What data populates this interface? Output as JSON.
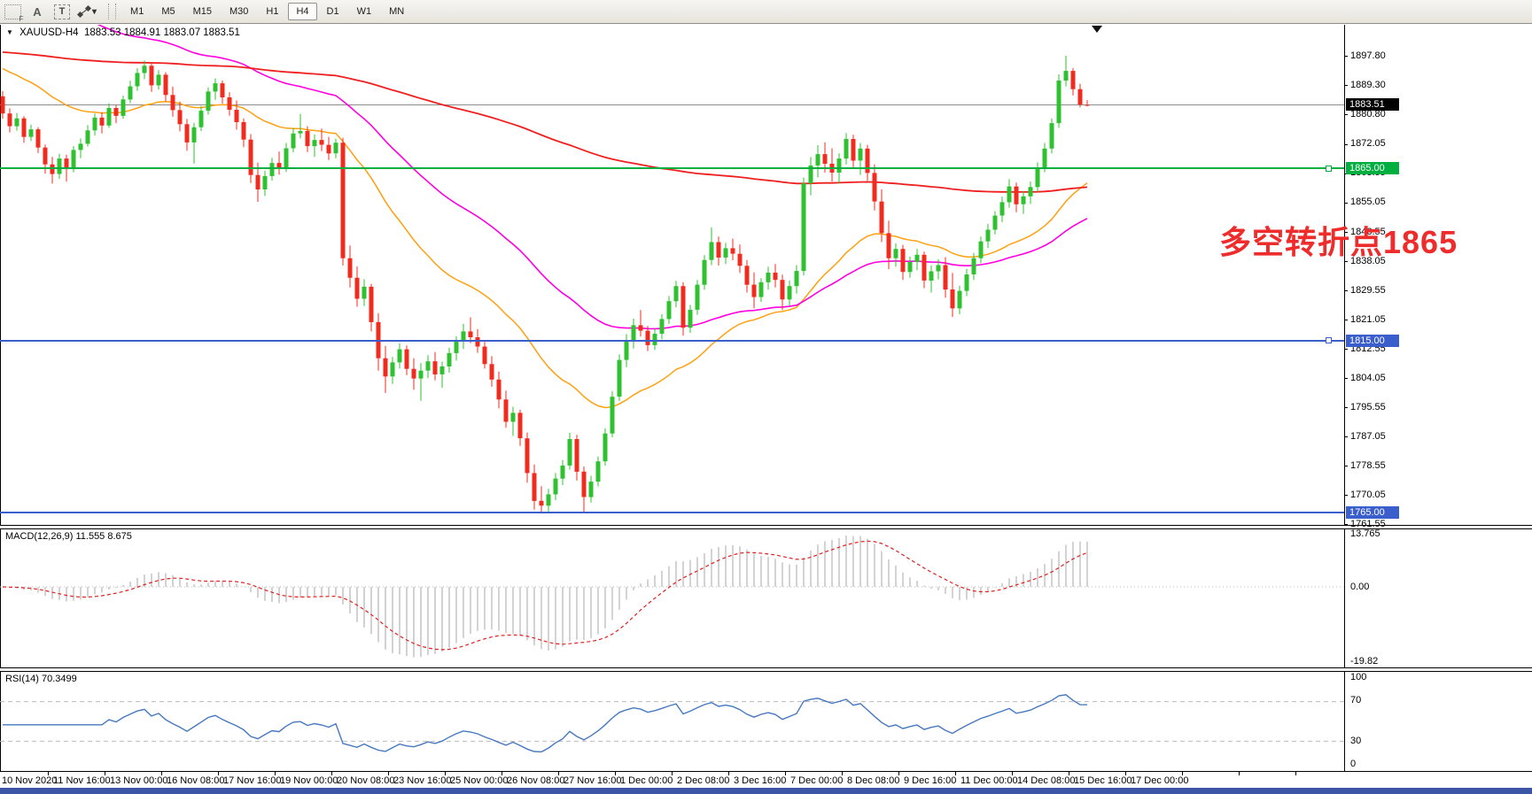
{
  "toolbar": {
    "icons": [
      {
        "name": "dotted-frame-f-icon",
        "glyph": "F"
      },
      {
        "name": "text-a-icon",
        "glyph": "A"
      },
      {
        "name": "text-label-icon",
        "glyph": "T"
      },
      {
        "name": "cycle-arrows-icon",
        "glyph": "❖"
      },
      {
        "name": "dropdown-caret-icon",
        "glyph": "▾"
      }
    ],
    "timeframes": [
      {
        "label": "M1",
        "active": false
      },
      {
        "label": "M5",
        "active": false
      },
      {
        "label": "M15",
        "active": false
      },
      {
        "label": "M30",
        "active": false
      },
      {
        "label": "H1",
        "active": false
      },
      {
        "label": "H4",
        "active": true
      },
      {
        "label": "D1",
        "active": false
      },
      {
        "label": "W1",
        "active": false
      },
      {
        "label": "MN",
        "active": false
      }
    ]
  },
  "chart": {
    "title": {
      "symbol_tf": "XAUUSD-H4",
      "ohlc": "1883.53 1884.91 1883.07 1883.51"
    },
    "annotation": {
      "text": "多空转折点1865",
      "color": "#ee2c2c"
    },
    "colors": {
      "candle_up": "#2fc12f",
      "candle_down": "#f22b1e",
      "ma_fast": "#ffa010",
      "ma_mid": "#ff00e1",
      "ma_slow": "#f01f1f",
      "price_line": "#8c8c8c",
      "macd_hist": "#b5b5b5",
      "macd_signal": "#e02020",
      "rsi": "#4678c0",
      "level_dash": "#bbbbbb",
      "hline_green": "#00af3f",
      "hline_blue": "#3a5fcd",
      "current_box": "#000000"
    },
    "price_axis": {
      "current_label": "1883.51",
      "current_value": 1883.51,
      "ticks": [
        "1897.80",
        "1889.30",
        "1880.80",
        "1872.05",
        "1863.55",
        "1855.05",
        "1846.55",
        "1838.05",
        "1829.55",
        "1821.05",
        "1812.55",
        "1804.05",
        "1795.55",
        "1787.05",
        "1778.55",
        "1770.05",
        "1761.55"
      ]
    },
    "hlines": [
      {
        "price": 1865.0,
        "label": "1865.00",
        "color": "#00af3f",
        "handle": true
      },
      {
        "price": 1815.0,
        "label": "1815.00",
        "color": "#3a5fcd",
        "handle": true
      },
      {
        "price": 1765.0,
        "label": "1765.00",
        "color": "#3a5fcd",
        "handle": false
      }
    ],
    "macd": {
      "label": "MACD(12,26,9) 11.555 8.675",
      "axis": [
        "13.765",
        "0.00",
        "-19.82"
      ]
    },
    "rsi": {
      "label": "RSI(14) 70.3499",
      "value": 70.3499,
      "axis": [
        "100",
        "70",
        "30",
        "0"
      ],
      "levels": [
        70,
        30
      ]
    },
    "time_axis": {
      "labels": [
        "10 Nov 2020",
        "11 Nov 16:00",
        "13 Nov 00:00",
        "16 Nov 08:00",
        "17 Nov 16:00",
        "19 Nov 00:00",
        "20 Nov 08:00",
        "23 Nov 16:00",
        "25 Nov 00:00",
        "26 Nov 08:00",
        "27 Nov 16:00",
        "1 Dec 00:00",
        "2 Dec 08:00",
        "3 Dec 16:00",
        "7 Dec 00:00",
        "8 Dec 08:00",
        "9 Dec 16:00",
        "11 Dec 00:00",
        "14 Dec 08:00",
        "15 Dec 16:00",
        "17 Dec 00:00"
      ]
    }
  },
  "chart_data": {
    "type": "candlestick",
    "symbol": "XAUUSD",
    "timeframe": "H4",
    "ylim": [
      1761.55,
      1906.8
    ],
    "macd_params": {
      "fast": 12,
      "slow": 26,
      "signal": 9
    },
    "rsi_period": 14,
    "moving_averages": [
      {
        "name": "ma-fast-orange",
        "period": 30,
        "seed": 1895,
        "color": "#ffa010",
        "width": 1.5
      },
      {
        "name": "ma-mid-magenta",
        "period": 60,
        "seed": 1928,
        "color": "#ff00e1",
        "width": 1.6
      },
      {
        "name": "ma-slow-red",
        "period": 260,
        "seed": 1899,
        "color": "#f01f1f",
        "width": 1.8
      }
    ],
    "candles": [
      [
        1886.0,
        1887.5,
        1879.5,
        1881.0
      ],
      [
        1881.0,
        1882.5,
        1875.5,
        1877.3
      ],
      [
        1877.3,
        1881.2,
        1876.0,
        1879.6
      ],
      [
        1879.6,
        1880.2,
        1872.5,
        1874.2
      ],
      [
        1874.2,
        1877.8,
        1873.0,
        1876.4
      ],
      [
        1876.4,
        1877.0,
        1869.5,
        1871.1
      ],
      [
        1871.1,
        1872.0,
        1863.5,
        1866.2
      ],
      [
        1866.2,
        1868.4,
        1860.6,
        1863.4
      ],
      [
        1863.4,
        1869.3,
        1862.0,
        1867.9
      ],
      [
        1867.9,
        1869.0,
        1861.2,
        1864.8
      ],
      [
        1864.8,
        1871.5,
        1863.9,
        1870.4
      ],
      [
        1870.4,
        1873.8,
        1868.0,
        1872.2
      ],
      [
        1872.2,
        1877.6,
        1871.4,
        1876.1
      ],
      [
        1876.1,
        1881.0,
        1874.6,
        1879.8
      ],
      [
        1879.8,
        1881.4,
        1875.2,
        1877.5
      ],
      [
        1877.5,
        1884.0,
        1876.8,
        1882.6
      ],
      [
        1882.6,
        1883.4,
        1878.2,
        1880.3
      ],
      [
        1880.3,
        1886.2,
        1879.5,
        1885.1
      ],
      [
        1885.1,
        1890.5,
        1884.0,
        1888.9
      ],
      [
        1888.9,
        1894.2,
        1887.6,
        1892.8
      ],
      [
        1892.8,
        1896.4,
        1891.0,
        1894.9
      ],
      [
        1894.9,
        1895.8,
        1887.3,
        1889.2
      ],
      [
        1889.2,
        1893.6,
        1888.0,
        1892.3
      ],
      [
        1892.3,
        1893.0,
        1884.6,
        1886.4
      ],
      [
        1886.4,
        1888.8,
        1880.1,
        1882.0
      ],
      [
        1882.0,
        1884.5,
        1875.8,
        1877.9
      ],
      [
        1877.9,
        1879.4,
        1870.2,
        1872.6
      ],
      [
        1872.6,
        1878.3,
        1866.4,
        1877.0
      ],
      [
        1877.0,
        1883.2,
        1875.9,
        1881.8
      ],
      [
        1881.8,
        1888.6,
        1880.7,
        1887.4
      ],
      [
        1887.4,
        1891.2,
        1885.0,
        1889.8
      ],
      [
        1889.8,
        1890.6,
        1883.9,
        1885.7
      ],
      [
        1885.7,
        1887.2,
        1880.4,
        1882.1
      ],
      [
        1882.1,
        1884.8,
        1876.3,
        1878.5
      ],
      [
        1878.5,
        1879.6,
        1871.2,
        1873.4
      ],
      [
        1873.4,
        1875.0,
        1860.8,
        1863.1
      ],
      [
        1863.1,
        1866.7,
        1855.3,
        1858.9
      ],
      [
        1858.9,
        1864.4,
        1857.0,
        1862.8
      ],
      [
        1862.8,
        1868.1,
        1861.5,
        1866.6
      ],
      [
        1866.6,
        1869.9,
        1863.2,
        1865.3
      ],
      [
        1865.3,
        1872.4,
        1864.0,
        1870.9
      ],
      [
        1870.9,
        1876.8,
        1869.7,
        1875.2
      ],
      [
        1875.2,
        1880.9,
        1873.8,
        1875.9
      ],
      [
        1875.9,
        1877.3,
        1869.8,
        1871.5
      ],
      [
        1871.5,
        1874.9,
        1868.4,
        1873.3
      ],
      [
        1873.3,
        1876.6,
        1870.1,
        1871.9
      ],
      [
        1871.9,
        1874.2,
        1867.5,
        1869.4
      ],
      [
        1869.4,
        1873.7,
        1868.0,
        1872.5
      ],
      [
        1872.5,
        1873.9,
        1836.8,
        1838.9
      ],
      [
        1838.9,
        1842.6,
        1830.4,
        1833.2
      ],
      [
        1833.2,
        1836.5,
        1824.8,
        1827.1
      ],
      [
        1827.1,
        1832.8,
        1825.0,
        1830.6
      ],
      [
        1830.6,
        1831.4,
        1817.6,
        1820.3
      ],
      [
        1820.3,
        1822.9,
        1806.2,
        1809.8
      ],
      [
        1809.8,
        1813.4,
        1799.7,
        1804.5
      ],
      [
        1804.5,
        1810.2,
        1802.3,
        1808.6
      ],
      [
        1808.6,
        1814.1,
        1806.8,
        1812.4
      ],
      [
        1812.4,
        1813.5,
        1804.9,
        1806.7
      ],
      [
        1806.7,
        1809.8,
        1800.6,
        1803.9
      ],
      [
        1803.9,
        1808.4,
        1797.4,
        1806.2
      ],
      [
        1806.2,
        1810.7,
        1804.0,
        1808.9
      ],
      [
        1808.9,
        1811.6,
        1803.4,
        1805.1
      ],
      [
        1805.1,
        1808.8,
        1801.2,
        1807.4
      ],
      [
        1807.4,
        1812.9,
        1805.6,
        1811.3
      ],
      [
        1811.3,
        1816.2,
        1809.1,
        1814.7
      ],
      [
        1814.7,
        1819.8,
        1812.5,
        1817.6
      ],
      [
        1817.6,
        1821.7,
        1814.2,
        1815.9
      ],
      [
        1815.9,
        1818.3,
        1811.4,
        1813.2
      ],
      [
        1813.2,
        1814.6,
        1806.8,
        1808.1
      ],
      [
        1808.1,
        1810.4,
        1801.5,
        1803.6
      ],
      [
        1803.6,
        1805.9,
        1795.2,
        1797.8
      ],
      [
        1797.8,
        1800.4,
        1789.6,
        1791.3
      ],
      [
        1791.3,
        1795.7,
        1787.2,
        1793.9
      ],
      [
        1793.9,
        1794.8,
        1784.3,
        1786.5
      ],
      [
        1786.5,
        1788.2,
        1773.6,
        1776.4
      ],
      [
        1776.4,
        1778.9,
        1765.8,
        1768.3
      ],
      [
        1768.3,
        1772.6,
        1764.6,
        1766.9
      ],
      [
        1766.9,
        1771.8,
        1765.1,
        1770.2
      ],
      [
        1770.2,
        1776.4,
        1768.5,
        1774.8
      ],
      [
        1774.8,
        1780.2,
        1772.9,
        1778.6
      ],
      [
        1778.6,
        1788.1,
        1777.4,
        1786.3
      ],
      [
        1786.3,
        1787.5,
        1774.2,
        1776.8
      ],
      [
        1776.8,
        1778.3,
        1764.9,
        1769.4
      ],
      [
        1769.4,
        1775.6,
        1767.8,
        1773.9
      ],
      [
        1773.9,
        1781.2,
        1772.5,
        1779.8
      ],
      [
        1779.8,
        1789.4,
        1778.6,
        1787.9
      ],
      [
        1787.9,
        1800.2,
        1786.8,
        1798.6
      ],
      [
        1798.6,
        1810.9,
        1797.4,
        1809.3
      ],
      [
        1809.3,
        1816.8,
        1807.2,
        1814.9
      ],
      [
        1814.9,
        1821.3,
        1812.6,
        1819.4
      ],
      [
        1819.4,
        1823.8,
        1816.1,
        1817.8
      ],
      [
        1817.8,
        1819.2,
        1811.9,
        1813.6
      ],
      [
        1813.6,
        1818.4,
        1812.2,
        1816.9
      ],
      [
        1816.9,
        1822.6,
        1815.3,
        1821.2
      ],
      [
        1821.2,
        1827.9,
        1819.8,
        1826.4
      ],
      [
        1826.4,
        1832.3,
        1824.6,
        1830.8
      ],
      [
        1830.8,
        1831.9,
        1816.4,
        1818.7
      ],
      [
        1818.7,
        1825.3,
        1817.2,
        1823.9
      ],
      [
        1823.9,
        1832.6,
        1822.4,
        1831.2
      ],
      [
        1831.2,
        1839.8,
        1829.7,
        1838.4
      ],
      [
        1838.4,
        1847.9,
        1836.9,
        1843.6
      ],
      [
        1843.6,
        1845.2,
        1836.8,
        1839.1
      ],
      [
        1839.1,
        1843.4,
        1837.2,
        1841.8
      ],
      [
        1841.8,
        1844.6,
        1838.3,
        1840.2
      ],
      [
        1840.2,
        1842.9,
        1834.6,
        1836.7
      ],
      [
        1836.7,
        1838.4,
        1828.9,
        1831.2
      ],
      [
        1831.2,
        1834.8,
        1824.3,
        1827.6
      ],
      [
        1827.6,
        1833.1,
        1826.2,
        1831.9
      ],
      [
        1831.9,
        1836.4,
        1829.8,
        1834.7
      ],
      [
        1834.7,
        1837.2,
        1830.4,
        1832.6
      ],
      [
        1832.6,
        1834.1,
        1823.8,
        1826.9
      ],
      [
        1826.9,
        1832.4,
        1825.1,
        1830.8
      ],
      [
        1830.8,
        1836.9,
        1828.6,
        1835.2
      ],
      [
        1835.2,
        1862.4,
        1833.9,
        1860.7
      ],
      [
        1860.7,
        1868.3,
        1857.2,
        1865.9
      ],
      [
        1865.9,
        1871.8,
        1862.4,
        1869.2
      ],
      [
        1869.2,
        1872.6,
        1863.8,
        1866.4
      ],
      [
        1866.4,
        1870.9,
        1861.2,
        1863.8
      ],
      [
        1863.8,
        1869.4,
        1860.6,
        1867.9
      ],
      [
        1867.9,
        1875.3,
        1866.2,
        1873.6
      ],
      [
        1873.6,
        1874.8,
        1864.9,
        1867.3
      ],
      [
        1867.3,
        1872.4,
        1863.1,
        1870.8
      ],
      [
        1870.8,
        1871.9,
        1861.4,
        1863.7
      ],
      [
        1863.7,
        1866.2,
        1852.8,
        1855.4
      ],
      [
        1855.4,
        1858.9,
        1843.6,
        1846.2
      ],
      [
        1846.2,
        1849.8,
        1835.7,
        1838.9
      ],
      [
        1838.9,
        1843.2,
        1836.4,
        1841.6
      ],
      [
        1841.6,
        1842.8,
        1832.6,
        1834.9
      ],
      [
        1834.9,
        1839.4,
        1833.2,
        1837.8
      ],
      [
        1837.8,
        1841.6,
        1835.4,
        1839.9
      ],
      [
        1839.9,
        1840.8,
        1830.2,
        1832.4
      ],
      [
        1832.4,
        1836.8,
        1828.9,
        1835.1
      ],
      [
        1835.1,
        1838.6,
        1832.7,
        1836.9
      ],
      [
        1836.9,
        1839.2,
        1827.4,
        1829.8
      ],
      [
        1829.8,
        1834.6,
        1821.8,
        1824.3
      ],
      [
        1824.3,
        1830.9,
        1822.6,
        1829.4
      ],
      [
        1829.4,
        1835.8,
        1827.9,
        1834.2
      ],
      [
        1834.2,
        1840.4,
        1832.6,
        1838.9
      ],
      [
        1838.9,
        1845.2,
        1837.4,
        1843.8
      ],
      [
        1843.8,
        1848.9,
        1841.9,
        1847.2
      ],
      [
        1847.2,
        1852.6,
        1845.8,
        1851.3
      ],
      [
        1851.3,
        1856.8,
        1849.4,
        1855.2
      ],
      [
        1855.2,
        1861.9,
        1853.6,
        1859.8
      ],
      [
        1859.8,
        1860.9,
        1852.3,
        1854.6
      ],
      [
        1854.6,
        1858.4,
        1851.8,
        1856.9
      ],
      [
        1856.9,
        1861.2,
        1854.7,
        1859.6
      ],
      [
        1859.6,
        1866.8,
        1858.2,
        1865.3
      ],
      [
        1865.3,
        1872.4,
        1863.9,
        1870.8
      ],
      [
        1870.8,
        1879.6,
        1869.4,
        1878.2
      ],
      [
        1878.2,
        1892.4,
        1876.8,
        1890.6
      ],
      [
        1890.6,
        1897.8,
        1888.9,
        1893.4
      ],
      [
        1893.4,
        1894.2,
        1886.3,
        1888.1
      ],
      [
        1888.1,
        1889.6,
        1882.8,
        1883.6
      ],
      [
        1883.53,
        1884.91,
        1883.07,
        1883.51
      ]
    ]
  }
}
